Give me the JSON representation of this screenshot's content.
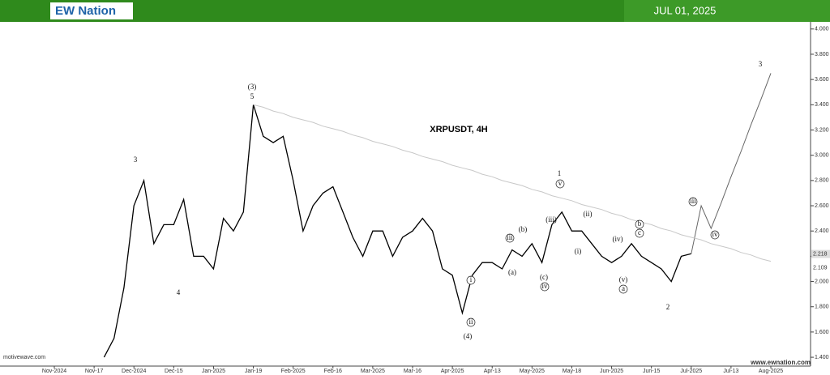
{
  "header": {
    "logo": "EW Nation",
    "date": "JUL 01, 2025"
  },
  "footer": {
    "left": "motivewave.com",
    "right": "www.ewnation.com"
  },
  "chart_data": {
    "type": "line",
    "title": "XRPUSDT, 4H",
    "categories": [
      "Nov-2024",
      null,
      null,
      null,
      "Nov-17",
      null,
      null,
      null,
      "Dec-2024",
      null,
      null,
      null,
      "Dec-15",
      null,
      null,
      null,
      "Jan-2025",
      null,
      null,
      null,
      "Jan-19",
      null,
      null,
      null,
      "Feb-2025",
      null,
      null,
      null,
      "Feb-16",
      null,
      null,
      null,
      "Mar-2025",
      null,
      null,
      null,
      "Mar-16",
      null,
      null,
      null,
      "Apr-2025",
      null,
      null,
      null,
      "Apr-13",
      null,
      null,
      null,
      "May-2025",
      null,
      null,
      null,
      "May-18",
      null,
      null,
      null,
      "Jun-2025",
      null,
      null,
      null,
      "Jun-15",
      null,
      null,
      null,
      "Jul-2025",
      null,
      null,
      null,
      "Jul-13",
      null,
      null,
      null,
      "Aug-2025"
    ],
    "series": [
      {
        "color": "#000000",
        "values": [
          null,
          null,
          null,
          null,
          null,
          1.4,
          1.55,
          1.95,
          2.6,
          2.8,
          2.3,
          2.45,
          2.45,
          2.65,
          2.2,
          2.2,
          2.1,
          2.5,
          2.4,
          2.55,
          3.4,
          3.15,
          3.1,
          3.15,
          2.8,
          2.4,
          2.6,
          2.7,
          2.75,
          2.55,
          2.35,
          2.2,
          2.4,
          2.4,
          2.2,
          2.35,
          2.4,
          2.5,
          2.4,
          2.1,
          2.05,
          1.75,
          2.05,
          2.15,
          2.15,
          2.1,
          2.25,
          2.2,
          2.3,
          2.15,
          2.45,
          2.55,
          2.4,
          2.4,
          2.3,
          2.2,
          2.15,
          2.2,
          2.3,
          2.2,
          2.15,
          2.1,
          2.0,
          2.2,
          2.22,
          null,
          null,
          null,
          null,
          null,
          null,
          null,
          null
        ]
      },
      {
        "color": "#666666",
        "values": [
          null,
          null,
          null,
          null,
          null,
          null,
          null,
          null,
          null,
          null,
          null,
          null,
          null,
          null,
          null,
          null,
          null,
          null,
          null,
          null,
          null,
          null,
          null,
          null,
          null,
          null,
          null,
          null,
          null,
          null,
          null,
          null,
          null,
          null,
          null,
          null,
          null,
          null,
          null,
          null,
          null,
          null,
          null,
          null,
          null,
          null,
          null,
          null,
          null,
          null,
          null,
          null,
          null,
          null,
          null,
          null,
          null,
          null,
          null,
          null,
          null,
          null,
          null,
          null,
          2.22,
          2.6,
          2.42,
          2.62,
          2.83,
          3.03,
          3.24,
          3.44,
          3.65
        ]
      },
      {
        "color": "#c8c8c8",
        "values": [
          null,
          null,
          null,
          null,
          null,
          null,
          null,
          null,
          null,
          null,
          null,
          null,
          null,
          null,
          null,
          null,
          null,
          null,
          null,
          null,
          3.4,
          3.38,
          3.35,
          3.33,
          3.3,
          3.28,
          3.26,
          3.23,
          3.21,
          3.19,
          3.16,
          3.14,
          3.11,
          3.09,
          3.07,
          3.04,
          3.02,
          2.99,
          2.97,
          2.95,
          2.92,
          2.9,
          2.88,
          2.85,
          2.83,
          2.8,
          2.78,
          2.76,
          2.73,
          2.71,
          2.68,
          2.66,
          2.64,
          2.61,
          2.59,
          2.57,
          2.54,
          2.52,
          2.49,
          2.47,
          2.45,
          2.42,
          2.4,
          2.37,
          2.35,
          2.33,
          2.3,
          2.28,
          2.26,
          2.23,
          2.21,
          2.18,
          2.16
        ]
      }
    ],
    "ylim": [
      1.33,
      4.05
    ],
    "yticks": [
      {
        "value": 1.4,
        "label": "1.400"
      },
      {
        "value": 1.6,
        "label": "1.600"
      },
      {
        "value": 1.8,
        "label": "1.800"
      },
      {
        "value": 2.0,
        "label": "2.000"
      },
      {
        "value": 2.2,
        "label": "2.200"
      },
      {
        "value": 2.4,
        "label": "2.400"
      },
      {
        "value": 2.6,
        "label": "2.600"
      },
      {
        "value": 2.8,
        "label": "2.800"
      },
      {
        "value": 3.0,
        "label": "3.000"
      },
      {
        "value": 3.2,
        "label": "3.200"
      },
      {
        "value": 3.4,
        "label": "3.400"
      },
      {
        "value": 3.6,
        "label": "3.600"
      },
      {
        "value": 3.8,
        "label": "3.800"
      },
      {
        "value": 4.0,
        "label": "4.000"
      }
    ],
    "price_tags": [
      2.218,
      2.109
    ],
    "annotations": [
      "(3)",
      "5",
      "3",
      "4",
      "(4)",
      "1",
      "2",
      "3",
      "i",
      "ii",
      "iii",
      "iv",
      "v",
      "(a)",
      "(b)",
      "(c)",
      "(i)",
      "(ii)",
      "(iii)",
      "(iv)",
      "(v)",
      "a",
      "b",
      "c",
      "iii",
      "iv"
    ]
  }
}
